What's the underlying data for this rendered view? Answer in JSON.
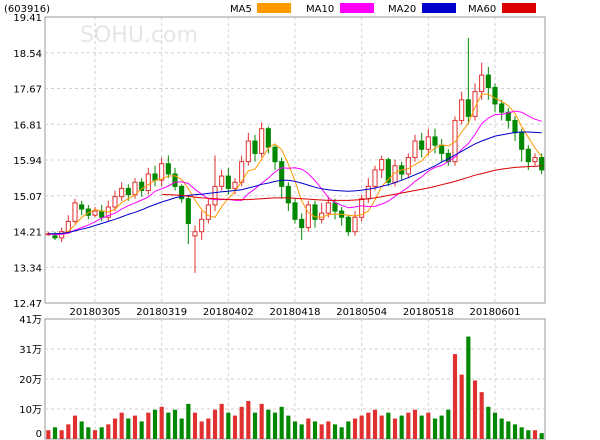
{
  "header": {
    "code": "(603916)",
    "watermark": "SOHU.com"
  },
  "legend": [
    {
      "label": "MA5",
      "color": "#ff9900"
    },
    {
      "label": "MA10",
      "color": "#ff00ff"
    },
    {
      "label": "MA20",
      "color": "#0000cc"
    },
    {
      "label": "MA60",
      "color": "#dd0000"
    }
  ],
  "colors": {
    "up": "#e03030",
    "down": "#008800"
  },
  "chart_data": {
    "type": "candlestick",
    "price_axis": {
      "ticks": [
        "19.41",
        "18.54",
        "17.67",
        "16.81",
        "15.94",
        "15.07",
        "14.21",
        "13.34",
        "12.47"
      ],
      "ylim": [
        12.47,
        19.41
      ]
    },
    "volume_axis": {
      "ticks": [
        "41万",
        "31万",
        "20万",
        "10万",
        "0"
      ],
      "ylim": [
        0,
        41
      ]
    },
    "date_ticks": [
      {
        "label": "20180305",
        "index": 7
      },
      {
        "label": "20180319",
        "index": 17
      },
      {
        "label": "20180402",
        "index": 27
      },
      {
        "label": "20180418",
        "index": 37
      },
      {
        "label": "20180504",
        "index": 47
      },
      {
        "label": "20180518",
        "index": 57
      },
      {
        "label": "20180601",
        "index": 67
      }
    ],
    "ohlc": [
      [
        14.15,
        14.15,
        14.1,
        14.2
      ],
      [
        14.1,
        14.05,
        14.0,
        14.2
      ],
      [
        14.05,
        14.2,
        13.95,
        14.3
      ],
      [
        14.2,
        14.45,
        14.15,
        14.6
      ],
      [
        14.45,
        14.9,
        14.4,
        15.0
      ],
      [
        14.85,
        14.75,
        14.6,
        14.95
      ],
      [
        14.75,
        14.6,
        14.5,
        14.85
      ],
      [
        14.6,
        14.7,
        14.55,
        14.8
      ],
      [
        14.7,
        14.55,
        14.45,
        14.85
      ],
      [
        14.55,
        14.8,
        14.45,
        14.95
      ],
      [
        14.8,
        15.05,
        14.7,
        15.2
      ],
      [
        15.05,
        15.25,
        14.95,
        15.4
      ],
      [
        15.25,
        15.1,
        14.95,
        15.35
      ],
      [
        15.1,
        15.4,
        15.0,
        15.5
      ],
      [
        15.4,
        15.2,
        15.05,
        15.5
      ],
      [
        15.2,
        15.6,
        15.1,
        15.75
      ],
      [
        15.6,
        15.45,
        15.3,
        15.8
      ],
      [
        15.45,
        15.85,
        15.3,
        16.0
      ],
      [
        15.85,
        15.6,
        15.5,
        16.05
      ],
      [
        15.6,
        15.3,
        15.2,
        15.75
      ],
      [
        15.3,
        15.0,
        14.9,
        15.35
      ],
      [
        15.0,
        14.4,
        13.9,
        15.05
      ],
      [
        14.1,
        14.2,
        13.2,
        14.35
      ],
      [
        14.2,
        14.5,
        14.0,
        14.7
      ],
      [
        14.5,
        14.85,
        14.4,
        15.0
      ],
      [
        14.85,
        15.3,
        14.7,
        16.05
      ],
      [
        15.3,
        15.55,
        15.2,
        15.7
      ],
      [
        15.55,
        15.25,
        15.1,
        15.75
      ],
      [
        15.25,
        15.4,
        15.1,
        15.5
      ],
      [
        15.4,
        15.9,
        15.3,
        16.05
      ],
      [
        15.9,
        16.4,
        15.8,
        16.6
      ],
      [
        16.4,
        16.1,
        15.9,
        16.55
      ],
      [
        16.1,
        16.7,
        16.0,
        16.85
      ],
      [
        16.7,
        16.25,
        16.1,
        16.75
      ],
      [
        16.25,
        15.9,
        15.7,
        16.3
      ],
      [
        15.9,
        15.3,
        15.0,
        16.0
      ],
      [
        15.3,
        14.9,
        14.7,
        15.4
      ],
      [
        14.9,
        14.5,
        14.4,
        15.0
      ],
      [
        14.5,
        14.3,
        14.0,
        14.65
      ],
      [
        14.3,
        14.85,
        14.2,
        14.95
      ],
      [
        14.85,
        14.5,
        14.3,
        14.95
      ],
      [
        14.5,
        14.65,
        14.4,
        14.9
      ],
      [
        14.65,
        14.9,
        14.55,
        15.05
      ],
      [
        14.9,
        14.7,
        14.5,
        15.0
      ],
      [
        14.7,
        14.55,
        14.35,
        14.8
      ],
      [
        14.55,
        14.2,
        14.1,
        14.6
      ],
      [
        14.2,
        14.55,
        14.1,
        14.7
      ],
      [
        14.55,
        15.0,
        14.45,
        15.1
      ],
      [
        15.0,
        15.3,
        14.9,
        15.5
      ],
      [
        15.3,
        15.7,
        15.2,
        15.8
      ],
      [
        15.7,
        15.95,
        15.5,
        16.05
      ],
      [
        15.95,
        15.4,
        15.3,
        16.0
      ],
      [
        15.4,
        15.8,
        15.3,
        15.95
      ],
      [
        15.8,
        15.6,
        15.45,
        15.9
      ],
      [
        15.6,
        16.0,
        15.5,
        16.1
      ],
      [
        16.0,
        16.4,
        15.9,
        16.55
      ],
      [
        16.4,
        16.2,
        16.0,
        16.6
      ],
      [
        16.2,
        16.5,
        16.05,
        16.7
      ],
      [
        16.5,
        16.3,
        16.1,
        16.7
      ],
      [
        16.3,
        16.1,
        15.9,
        16.45
      ],
      [
        16.1,
        15.9,
        15.8,
        16.2
      ],
      [
        15.9,
        16.9,
        15.8,
        17.0
      ],
      [
        16.9,
        17.4,
        16.8,
        17.6
      ],
      [
        17.4,
        17.0,
        16.8,
        18.9
      ],
      [
        17.0,
        17.6,
        16.9,
        17.8
      ],
      [
        17.6,
        18.0,
        17.4,
        18.3
      ],
      [
        18.0,
        17.7,
        17.4,
        18.2
      ],
      [
        17.7,
        17.3,
        17.1,
        17.8
      ],
      [
        17.3,
        17.1,
        16.9,
        17.4
      ],
      [
        17.1,
        16.9,
        16.7,
        17.2
      ],
      [
        16.9,
        16.6,
        16.4,
        17.0
      ],
      [
        16.6,
        16.2,
        15.9,
        16.7
      ],
      [
        16.2,
        15.9,
        15.7,
        16.3
      ],
      [
        15.9,
        16.0,
        15.8,
        16.1
      ],
      [
        16.0,
        15.7,
        15.6,
        16.1
      ]
    ],
    "volume": [
      3,
      4,
      3,
      5,
      8,
      6,
      4,
      3,
      4,
      5,
      7,
      9,
      7,
      8,
      6,
      9,
      10,
      11,
      9,
      10,
      7,
      12,
      9,
      6,
      7,
      10,
      12,
      9,
      8,
      11,
      13,
      9,
      12,
      10,
      9,
      11,
      8,
      6,
      5,
      7,
      6,
      5,
      6,
      5,
      4,
      6,
      7,
      8,
      9,
      10,
      8,
      9,
      7,
      8,
      9,
      10,
      8,
      9,
      7,
      8,
      10,
      29,
      22,
      35,
      20,
      16,
      11,
      9,
      7,
      6,
      5,
      4,
      3,
      3,
      2
    ],
    "ma": {
      "MA5": [
        14.15,
        14.13,
        14.15,
        14.21,
        14.37,
        14.55,
        14.66,
        14.74,
        14.7,
        14.68,
        14.74,
        14.91,
        15.0,
        15.09,
        15.24,
        15.34,
        15.45,
        15.48,
        15.55,
        15.56,
        15.47,
        15.24,
        14.97,
        14.74,
        14.59,
        14.55,
        14.81,
        15.01,
        15.18,
        15.42,
        15.68,
        15.72,
        15.96,
        16.23,
        16.33,
        16.19,
        15.84,
        15.43,
        14.95,
        14.66,
        14.56,
        14.55,
        14.61,
        14.63,
        14.62,
        14.6,
        14.58,
        14.61,
        14.7,
        14.97,
        15.3,
        15.47,
        15.63,
        15.7,
        15.73,
        15.83,
        15.92,
        16.1,
        16.23,
        16.31,
        16.28,
        16.38,
        16.62,
        16.83,
        17.22,
        17.54,
        17.54,
        17.44,
        17.36,
        17.26,
        17.07,
        16.75,
        16.49,
        16.23,
        16.02
      ],
      "MA10": [
        14.15,
        14.13,
        14.14,
        14.16,
        14.24,
        14.3,
        14.36,
        14.44,
        14.53,
        14.59,
        14.65,
        14.75,
        14.83,
        14.9,
        14.97,
        15.04,
        15.18,
        15.24,
        15.31,
        15.4,
        15.41,
        15.37,
        15.23,
        15.11,
        15.0,
        14.98,
        14.98,
        14.99,
        14.96,
        14.96,
        15.12,
        15.24,
        15.38,
        15.5,
        15.65,
        15.75,
        15.74,
        15.75,
        15.72,
        15.61,
        15.44,
        15.24,
        15.03,
        14.91,
        14.84,
        14.78,
        14.8,
        14.83,
        14.81,
        14.82,
        14.87,
        14.94,
        15.06,
        15.17,
        15.28,
        15.42,
        15.53,
        15.67,
        15.76,
        15.81,
        15.9,
        16.01,
        16.2,
        16.34,
        16.56,
        16.82,
        16.96,
        17.04,
        17.05,
        17.08,
        17.13,
        17.1,
        17.01,
        16.93,
        16.88
      ],
      "MA20": [
        14.15,
        14.15,
        14.16,
        14.18,
        14.22,
        14.26,
        14.3,
        14.35,
        14.4,
        14.45,
        14.5,
        14.56,
        14.62,
        14.67,
        14.73,
        14.8,
        14.86,
        14.92,
        14.97,
        15.02,
        15.06,
        15.08,
        15.1,
        15.11,
        15.13,
        15.15,
        15.17,
        15.18,
        15.2,
        15.22,
        15.26,
        15.3,
        15.35,
        15.38,
        15.42,
        15.45,
        15.45,
        15.42,
        15.38,
        15.33,
        15.28,
        15.24,
        15.22,
        15.2,
        15.19,
        15.18,
        15.19,
        15.21,
        15.23,
        15.26,
        15.3,
        15.34,
        15.39,
        15.45,
        15.51,
        15.58,
        15.65,
        15.72,
        15.8,
        15.89,
        15.97,
        16.06,
        16.15,
        16.24,
        16.33,
        16.4,
        16.46,
        16.52,
        16.55,
        16.58,
        16.61,
        16.62,
        16.62,
        16.61,
        16.6
      ],
      "MA60": [
        null,
        null,
        null,
        null,
        null,
        null,
        null,
        null,
        null,
        null,
        null,
        null,
        null,
        null,
        null,
        null,
        null,
        15.1,
        15.1,
        15.09,
        15.08,
        15.06,
        15.04,
        15.02,
        15.01,
        15.0,
        14.99,
        14.98,
        14.98,
        14.98,
        14.98,
        14.99,
        15.0,
        15.01,
        15.02,
        15.02,
        15.02,
        15.01,
        15.0,
        14.99,
        14.98,
        14.97,
        14.96,
        14.96,
        14.96,
        14.96,
        14.97,
        14.98,
        15.0,
        15.02,
        15.05,
        15.08,
        15.11,
        15.14,
        15.17,
        15.2,
        15.23,
        15.26,
        15.3,
        15.34,
        15.38,
        15.42,
        15.47,
        15.52,
        15.57,
        15.61,
        15.65,
        15.69,
        15.72,
        15.74,
        15.76,
        15.77,
        15.78,
        15.79,
        15.8
      ]
    }
  }
}
